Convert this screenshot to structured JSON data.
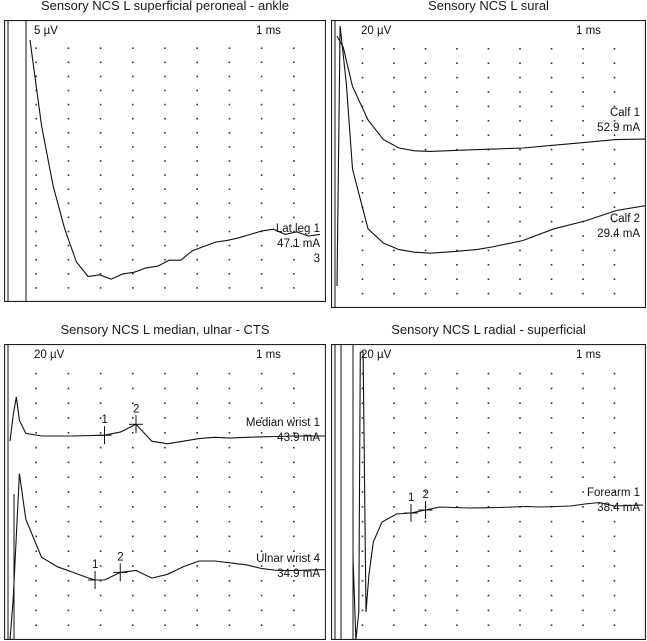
{
  "chart_data": [
    {
      "type": "line",
      "title": "Sensory NCS L superficial peroneal - ankle",
      "scale": {
        "amplitude": "5 µV",
        "time": "1 ms"
      },
      "grid": true,
      "series": [
        {
          "name": "Lat leg 1",
          "stim": "47.1 mA",
          "marker_label": "3",
          "x": [
            0,
            0.4,
            0.8,
            1.2,
            1.6,
            2,
            2.4,
            2.8,
            3.2,
            3.6,
            4,
            4.4,
            4.8,
            5.2,
            5.6,
            6,
            6.4,
            6.8,
            7.2,
            7.6,
            8,
            8.4,
            8.8,
            9.2,
            9.6,
            10
          ],
          "y": [
            0,
            -10,
            -17,
            -22,
            -25.8,
            -27.5,
            -27.3,
            -27.8,
            -27.2,
            -27,
            -26.5,
            -26.3,
            -25.6,
            -25.6,
            -24.5,
            -24,
            -23.5,
            -23.3,
            -23,
            -22.6,
            -22.2,
            -22,
            -22.6,
            -22.3,
            -22.8,
            -22.6
          ],
          "markers": []
        }
      ]
    },
    {
      "type": "line",
      "title": "Sensory NCS L sural",
      "scale": {
        "amplitude": "20 µV",
        "time": "1 ms"
      },
      "grid": true,
      "series": [
        {
          "name": "Calf 1",
          "stim": "52.9 mA",
          "x": [
            0,
            0.2,
            0.5,
            1,
            1.5,
            2,
            2.5,
            3,
            3.5,
            4,
            5,
            6,
            7,
            8,
            9,
            10
          ],
          "y": [
            20,
            18,
            11,
            5,
            1.5,
            0,
            -0.5,
            -0.6,
            -0.5,
            -0.4,
            -0.2,
            0,
            0.5,
            1,
            1.5,
            1.6
          ],
          "markers": []
        },
        {
          "name": "Calf 2",
          "stim": "29.4 mA",
          "x": [
            0,
            0.1,
            0.3,
            0.5,
            1,
            1.5,
            2,
            2.5,
            3,
            3.5,
            4,
            4.5,
            5,
            6,
            7,
            8,
            9,
            10
          ],
          "y": [
            -40,
            60,
            38,
            5,
            -18,
            -23.5,
            -26,
            -27,
            -27.4,
            -27,
            -26.5,
            -26,
            -25,
            -22.5,
            -18,
            -15,
            -11,
            -9
          ],
          "markers": []
        }
      ]
    },
    {
      "type": "line",
      "title": "Sensory NCS L median, ulnar - CTS",
      "scale": {
        "amplitude": "20 µV",
        "time": "1 ms"
      },
      "grid": true,
      "series": [
        {
          "name": "Median wrist 1",
          "stim": "43.9 mA",
          "x": [
            0,
            0.1,
            0.2,
            0.3,
            0.5,
            1,
            2,
            3,
            3.5,
            4,
            4.5,
            5,
            5.5,
            6,
            6.5,
            7,
            7.5,
            8,
            8.5,
            9,
            10
          ],
          "y": [
            -2,
            8,
            15,
            6,
            1,
            0,
            0,
            0.3,
            1.5,
            4.5,
            -2,
            -3,
            -2,
            -1,
            -0.5,
            -0.8,
            -0.5,
            -0.3,
            -0.2,
            0,
            0
          ],
          "markers": [
            {
              "label": "1",
              "x": 3,
              "y": 0.3
            },
            {
              "label": "2",
              "x": 4,
              "y": 4.5
            }
          ]
        },
        {
          "name": "Ulnar wrist 4",
          "stim": "34.9 mA",
          "x": [
            0,
            0.1,
            0.3,
            0.5,
            1,
            1.5,
            2,
            2.5,
            2.7,
            3,
            3.5,
            4,
            4.5,
            5,
            5.5,
            6,
            6.5,
            7,
            7.5,
            8,
            8.5,
            9,
            10
          ],
          "y": [
            -95,
            -30,
            36,
            12,
            -8,
            -13,
            -16,
            -19,
            -20,
            -20,
            -16,
            -15,
            -19,
            -17,
            -13,
            -10,
            -10,
            -11,
            -12,
            -14,
            -15,
            -15,
            -14.5
          ],
          "markers": [
            {
              "label": "1",
              "x": 2.7,
              "y": -20
            },
            {
              "label": "2",
              "x": 3.5,
              "y": -16
            }
          ]
        }
      ]
    },
    {
      "type": "line",
      "title": "Sensory NCS L radial - superficial",
      "scale": {
        "amplitude": "20 µV",
        "time": "1 ms"
      },
      "grid": true,
      "series": [
        {
          "name": "Forearm 1",
          "stim": "38.4 mA",
          "x": [
            0,
            0.1,
            0.2,
            0.25,
            0.35,
            0.45,
            0.55,
            0.7,
            1,
            1.5,
            2,
            2.5,
            3,
            3.5,
            4,
            4.5,
            5,
            5.5,
            6,
            6.5,
            7,
            7.5,
            8,
            8.5,
            9,
            9.5,
            10
          ],
          "y": [
            -45,
            -150,
            -100,
            160,
            160,
            -100,
            -62,
            -30,
            -10,
            -2,
            -1,
            2,
            5,
            4.5,
            4,
            4.2,
            4.5,
            5,
            5.5,
            5,
            5.5,
            6,
            8,
            9.5,
            6,
            6.5,
            7
          ],
          "markers": [
            {
              "label": "1",
              "x": 2,
              "y": -1
            },
            {
              "label": "2",
              "x": 2.5,
              "y": 5
            }
          ]
        }
      ]
    }
  ]
}
